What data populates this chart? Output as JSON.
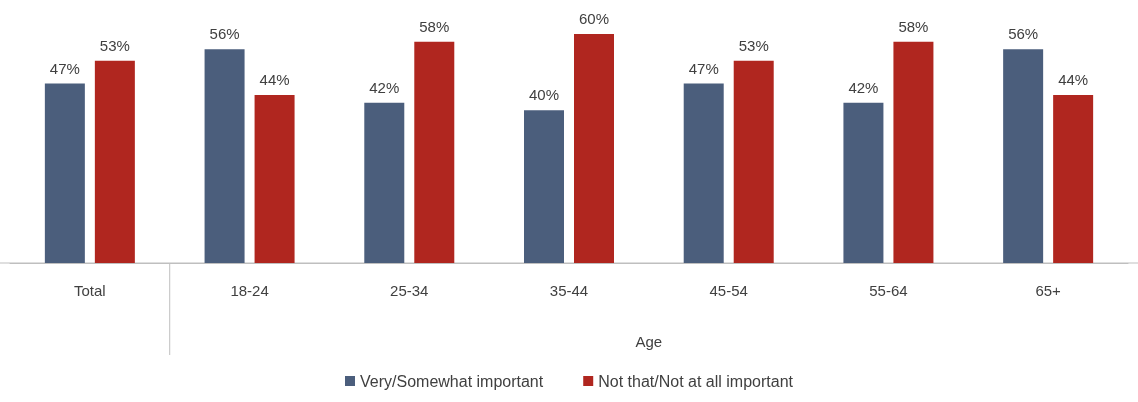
{
  "chart_data": {
    "type": "bar",
    "categories": [
      "Total",
      "18-24",
      "25-34",
      "35-44",
      "45-54",
      "55-64",
      "65+"
    ],
    "xlabel": "Age",
    "legend": "bottom",
    "series": [
      {
        "name": "Very/Somewhat important",
        "color": "#4b5e7c",
        "values": [
          47,
          56,
          42,
          40,
          47,
          42,
          56
        ],
        "value_labels": [
          "47%",
          "56%",
          "42%",
          "40%",
          "47%",
          "42%",
          "56%"
        ]
      },
      {
        "name": "Not that/Not at all important",
        "color": "#b0261f",
        "values": [
          53,
          44,
          58,
          60,
          53,
          58,
          44
        ],
        "value_labels": [
          "53%",
          "44%",
          "58%",
          "60%",
          "53%",
          "58%",
          "44%"
        ]
      }
    ]
  }
}
